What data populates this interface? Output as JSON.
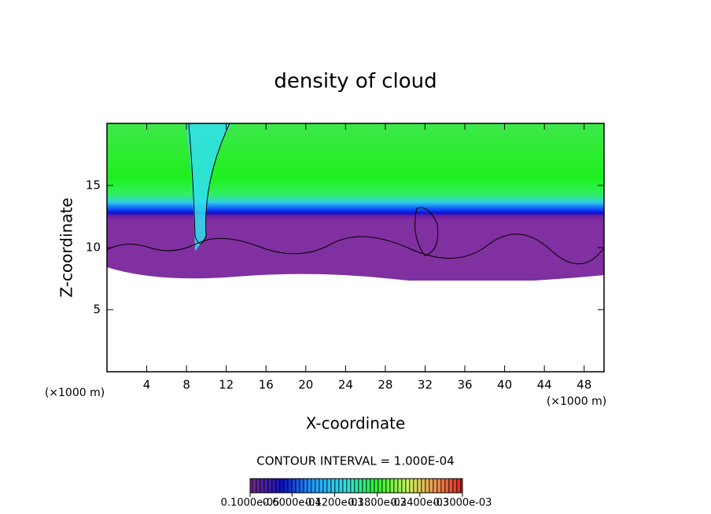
{
  "chart_data": {
    "type": "heatmap",
    "title": "density of cloud",
    "x_label": "X-coordinate",
    "y_label": "Z-coordinate",
    "y_unit": "(×1000 m)",
    "x_unit": "(×1000 m)",
    "xlim": [
      0,
      50
    ],
    "ylim": [
      0,
      20
    ],
    "xticks": [
      4,
      8,
      12,
      16,
      20,
      24,
      28,
      32,
      36,
      40,
      44,
      48
    ],
    "yticks": [
      5,
      10,
      15
    ],
    "contour_interval": "CONTOUR INTERVAL = 1.000E-04",
    "colorbar": {
      "lim": [
        1e-06,
        0.0003
      ],
      "ticks": [
        {
          "value": 1e-06,
          "label": "0.1000e-05"
        },
        {
          "value": 6e-05,
          "label": "0.6000e-04"
        },
        {
          "value": 0.00012,
          "label": "0.1200e-03"
        },
        {
          "value": 0.00018,
          "label": "0.1800e-03"
        },
        {
          "value": 0.00024,
          "label": "0.2400e-03"
        },
        {
          "value": 0.0003,
          "label": "0.3000e-03"
        }
      ]
    }
  }
}
